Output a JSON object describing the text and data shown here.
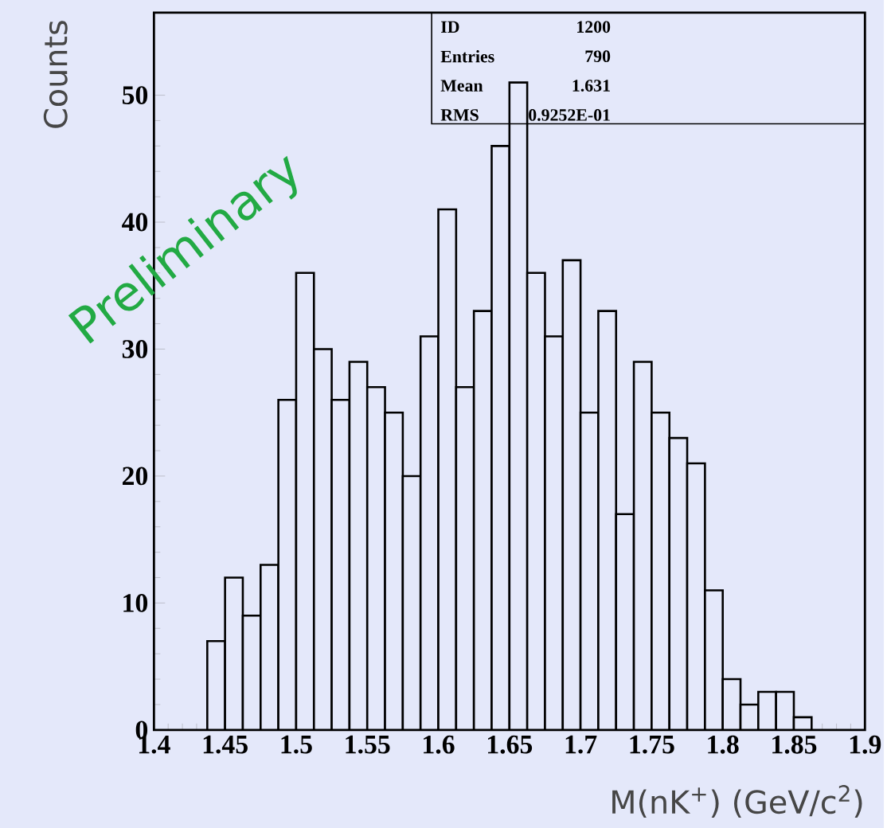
{
  "chart_data": {
    "type": "histogram",
    "xlabel": "M(nK$^{+}$) (GeV/c$^{2}$)",
    "ylabel": "Counts",
    "color": "#000000",
    "bins": [
      1.4375,
      1.45,
      1.4625,
      1.475,
      1.4875,
      1.5,
      1.5125,
      1.525,
      1.5375,
      1.55,
      1.5625,
      1.575,
      1.5875,
      1.6,
      1.6125,
      1.625,
      1.6375,
      1.65,
      1.6625,
      1.675,
      1.6875,
      1.7,
      1.7125,
      1.725,
      1.7375,
      1.75,
      1.7625,
      1.775,
      1.7875,
      1.8,
      1.8125,
      1.825,
      1.8375,
      1.85,
      1.8625
    ],
    "values": [
      7,
      12,
      9,
      13,
      26,
      36,
      30,
      26,
      29,
      27,
      25,
      20,
      31,
      41,
      27,
      33,
      46,
      51,
      36,
      31,
      37,
      25,
      33,
      17,
      29,
      25,
      23,
      21,
      11,
      4,
      2,
      3,
      3,
      1
    ],
    "xlim": [
      1.4,
      1.9
    ],
    "ylim": [
      0,
      56.5
    ],
    "xticks": [
      1.4,
      1.45,
      1.5,
      1.55,
      1.6,
      1.65,
      1.7,
      1.75,
      1.8,
      1.85,
      1.9
    ],
    "yticks": [
      0,
      10,
      20,
      30,
      40,
      50
    ],
    "annotations": [
      "Preliminary",
      "ID",
      "1200",
      "Entries",
      "790",
      "Mean",
      "1.631",
      "RMS",
      "0.9252E-01"
    ]
  }
}
